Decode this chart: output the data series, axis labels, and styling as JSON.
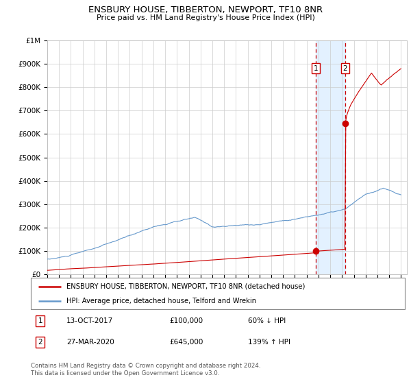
{
  "title": "ENSBURY HOUSE, TIBBERTON, NEWPORT, TF10 8NR",
  "subtitle": "Price paid vs. HM Land Registry's House Price Index (HPI)",
  "legend_line1": "ENSBURY HOUSE, TIBBERTON, NEWPORT, TF10 8NR (detached house)",
  "legend_line2": "HPI: Average price, detached house, Telford and Wrekin",
  "footnote": "Contains HM Land Registry data © Crown copyright and database right 2024.\nThis data is licensed under the Open Government Licence v3.0.",
  "sale1_date": "13-OCT-2017",
  "sale1_price": 100000,
  "sale1_pct": "60% ↓ HPI",
  "sale2_date": "27-MAR-2020",
  "sale2_price": 645000,
  "sale2_pct": "139% ↑ HPI",
  "red_color": "#cc0000",
  "blue_color": "#6699cc",
  "background_shade": "#ddeeff",
  "ylim_max": 1000000,
  "xmin": 1995,
  "xmax": 2025.5,
  "sale1_x": 2017.79,
  "sale2_x": 2020.25
}
